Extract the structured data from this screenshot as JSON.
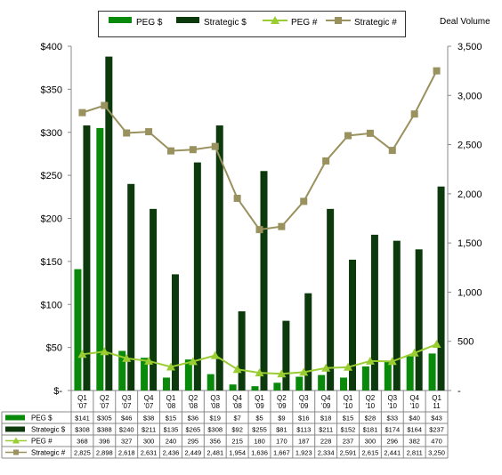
{
  "chart_data": {
    "type": "bar",
    "title": "",
    "categories": [
      "Q1 '07",
      "Q2 '07",
      "Q3 '07",
      "Q4 '07",
      "Q1 '08",
      "Q2 '08",
      "Q3 '08",
      "Q4 '08",
      "Q1 '09",
      "Q2 '09",
      "Q3 '09",
      "Q4 '09",
      "Q1 '10",
      "Q2 '10",
      "Q3 '10",
      "Q4 '10",
      "Q1 11"
    ],
    "category_lines": [
      [
        "Q1",
        "'07"
      ],
      [
        "Q2",
        "'07"
      ],
      [
        "Q3",
        "'07"
      ],
      [
        "Q4",
        "'07"
      ],
      [
        "Q1",
        "'08"
      ],
      [
        "Q2",
        "'08"
      ],
      [
        "Q3",
        "'08"
      ],
      [
        "Q4",
        "'08"
      ],
      [
        "Q1",
        "'09"
      ],
      [
        "Q2",
        "'09"
      ],
      [
        "Q3",
        "'09"
      ],
      [
        "Q4",
        "'09"
      ],
      [
        "Q1",
        "'10"
      ],
      [
        "Q2",
        "'10"
      ],
      [
        "Q3",
        "'10"
      ],
      [
        "Q4",
        "'10"
      ],
      [
        "Q1",
        "11"
      ]
    ],
    "y_left": {
      "label": "",
      "ylim": [
        0,
        400
      ],
      "ticks": [
        0,
        50,
        100,
        150,
        200,
        250,
        300,
        350,
        400
      ],
      "tick_labels": [
        "$-",
        "$50",
        "$100",
        "$150",
        "$200",
        "$250",
        "$300",
        "$350",
        "$400"
      ]
    },
    "y_right": {
      "label": "Deal Volume",
      "ylim": [
        0,
        3500
      ],
      "ticks": [
        0,
        500,
        1000,
        1500,
        2000,
        2500,
        3000,
        3500
      ],
      "tick_labels": [
        "-",
        "500",
        "1,000",
        "1,500",
        "2,000",
        "2,500",
        "3,000",
        "3,500"
      ]
    },
    "grid": false,
    "legend_position": "top",
    "series": [
      {
        "name": "PEG $",
        "kind": "bar",
        "axis": "left",
        "color": "#0a8a0a",
        "values": [
          141,
          305,
          46,
          38,
          15,
          36,
          19,
          7,
          5,
          9,
          16,
          18,
          15,
          28,
          33,
          40,
          43
        ],
        "table_labels": [
          "$141",
          "$305",
          "$46",
          "$38",
          "$15",
          "$36",
          "$19",
          "$7",
          "$5",
          "$9",
          "$16",
          "$18",
          "$15",
          "$28",
          "$33",
          "$40",
          "$43"
        ]
      },
      {
        "name": "Strategic $",
        "kind": "bar",
        "axis": "left",
        "color": "#0d3a0d",
        "values": [
          308,
          388,
          240,
          211,
          135,
          265,
          308,
          92,
          255,
          81,
          113,
          211,
          152,
          181,
          174,
          164,
          237
        ],
        "table_labels": [
          "$308",
          "$388",
          "$240",
          "$211",
          "$135",
          "$265",
          "$308",
          "$92",
          "$255",
          "$81",
          "$113",
          "$211",
          "$152",
          "$181",
          "$174",
          "$164",
          "$237"
        ]
      },
      {
        "name": "PEG #",
        "kind": "line",
        "axis": "right",
        "color": "#9acd32",
        "marker": "triangle",
        "values": [
          368,
          396,
          327,
          300,
          240,
          295,
          356,
          215,
          180,
          170,
          187,
          228,
          237,
          300,
          296,
          382,
          470
        ],
        "table_labels": [
          "368",
          "396",
          "327",
          "300",
          "240",
          "295",
          "356",
          "215",
          "180",
          "170",
          "187",
          "228",
          "237",
          "300",
          "296",
          "382",
          "470"
        ]
      },
      {
        "name": "Strategic #",
        "kind": "line",
        "axis": "right",
        "color": "#99915e",
        "marker": "square",
        "values": [
          2825,
          2898,
          2618,
          2631,
          2436,
          2449,
          2481,
          1954,
          1636,
          1667,
          1923,
          2334,
          2591,
          2615,
          2441,
          2811,
          3250
        ],
        "table_labels": [
          "2,825",
          "2,898",
          "2,618",
          "2,631",
          "2,436",
          "2,449",
          "2,481",
          "1,954",
          "1,636",
          "1,667",
          "1,923",
          "2,334",
          "2,591",
          "2,615",
          "2,441",
          "2,811",
          "3,250"
        ]
      }
    ]
  }
}
